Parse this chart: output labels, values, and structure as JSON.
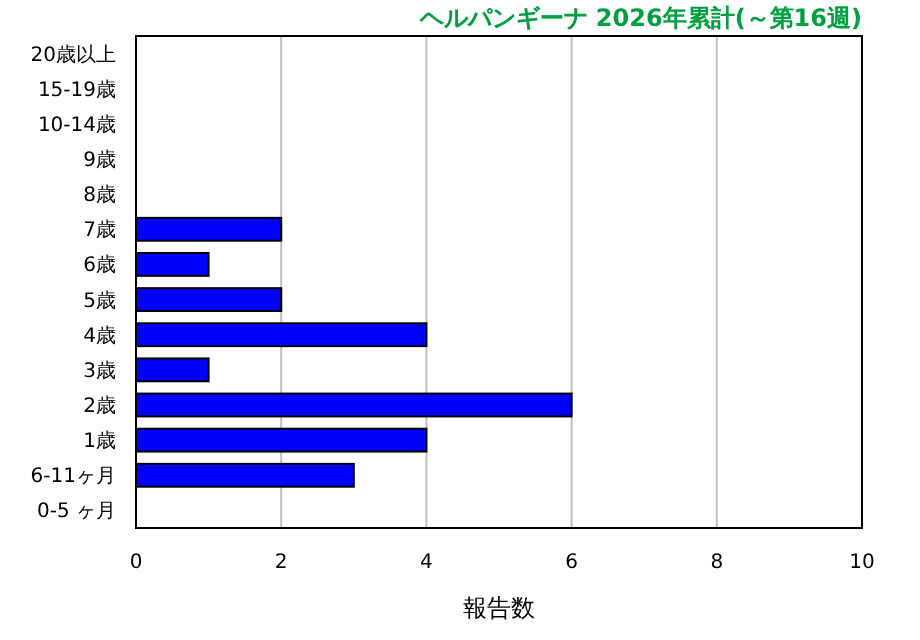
{
  "chart_data": {
    "type": "bar",
    "orientation": "horizontal",
    "title": "ヘルパンギーナ 2026年累計(～第16週)",
    "xlabel": "報告数",
    "categories": [
      "20歳以上",
      "15-19歳",
      "10-14歳",
      "9歳",
      "8歳",
      "7歳",
      "6歳",
      "5歳",
      "4歳",
      "3歳",
      "2歳",
      "1歳",
      "6-11ヶ月",
      "0-5 ヶ月"
    ],
    "values": [
      0,
      0,
      0,
      0,
      0,
      2,
      1,
      2,
      4,
      1,
      6,
      4,
      3,
      0
    ],
    "color": "#0000ff",
    "xlim": [
      0,
      10
    ],
    "xticks": [
      0,
      2,
      4,
      6,
      8,
      10
    ],
    "grid": "x"
  }
}
